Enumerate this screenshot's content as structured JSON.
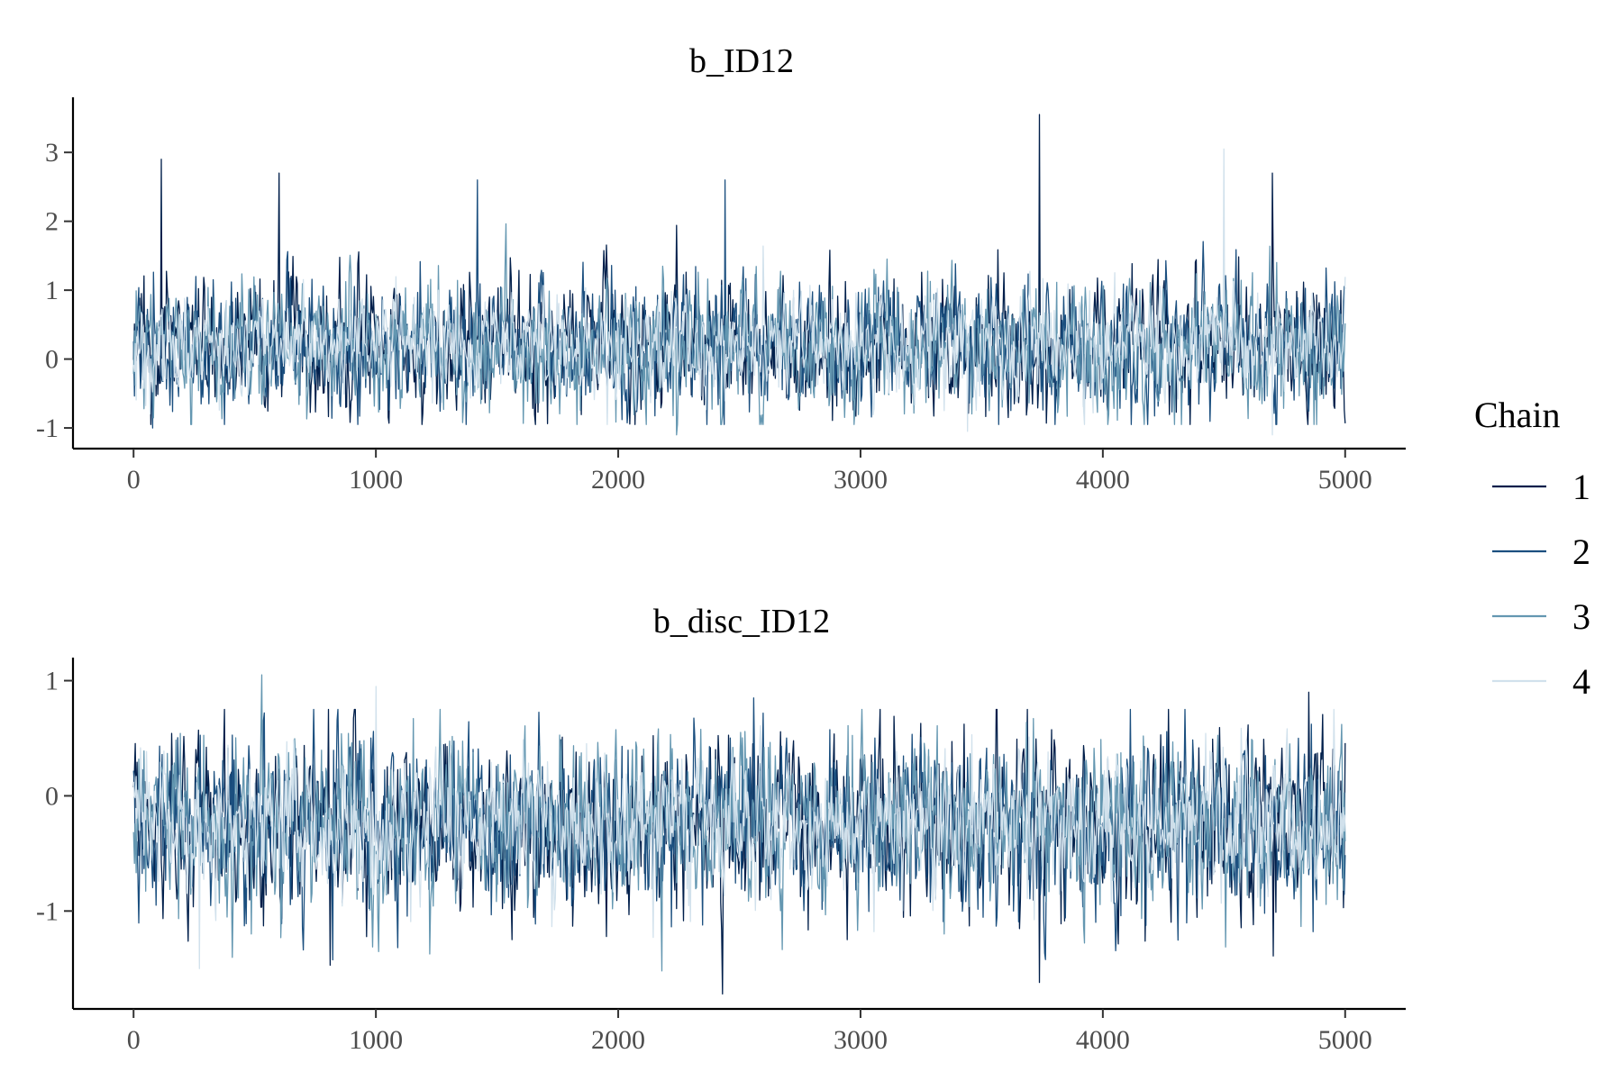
{
  "chart_data": [
    {
      "type": "line",
      "title": "b_ID12",
      "xlabel": "",
      "ylabel": "",
      "xlim": [
        -250,
        5250
      ],
      "ylim": [
        -1.3,
        3.8
      ],
      "x_ticks": [
        0,
        1000,
        2000,
        3000,
        4000,
        5000
      ],
      "x_tick_labels": [
        "0",
        "1000",
        "2000",
        "3000",
        "4000",
        "5000"
      ],
      "y_ticks": [
        -1,
        0,
        1,
        2,
        3
      ],
      "y_tick_labels": [
        "-1",
        "0",
        "1",
        "2",
        "3"
      ],
      "draws": 5000,
      "series_stats": {
        "center": 0.2,
        "spread": 0.45,
        "min": -1.1,
        "max": 3.6
      },
      "peaks": [
        {
          "chain": "1",
          "x": 115,
          "y": 2.9
        },
        {
          "chain": "1",
          "x": 600,
          "y": 2.7
        },
        {
          "chain": "2",
          "x": 1420,
          "y": 2.6
        },
        {
          "chain": "2",
          "x": 2440,
          "y": 2.6
        },
        {
          "chain": "1",
          "x": 3740,
          "y": 3.55
        },
        {
          "chain": "4",
          "x": 4500,
          "y": 3.05
        },
        {
          "chain": "1",
          "x": 4700,
          "y": 2.7
        }
      ],
      "troughs": [
        {
          "chain": "2",
          "x": 80,
          "y": -1.0
        },
        {
          "chain": "3",
          "x": 2240,
          "y": -1.1
        },
        {
          "chain": "4",
          "x": 3440,
          "y": -1.05
        },
        {
          "chain": "4",
          "x": 4700,
          "y": -1.1
        }
      ]
    },
    {
      "type": "line",
      "title": "b_disc_ID12",
      "xlabel": "",
      "ylabel": "",
      "xlim": [
        -250,
        5250
      ],
      "ylim": [
        -1.85,
        1.2
      ],
      "x_ticks": [
        0,
        1000,
        2000,
        3000,
        4000,
        5000
      ],
      "x_tick_labels": [
        "0",
        "1000",
        "2000",
        "3000",
        "4000",
        "5000"
      ],
      "y_ticks": [
        -1,
        0,
        1
      ],
      "y_tick_labels": [
        "-1",
        "0",
        "1"
      ],
      "draws": 5000,
      "series_stats": {
        "center": -0.25,
        "spread": 0.35,
        "min": -1.72,
        "max": 1.05
      },
      "peaks": [
        {
          "chain": "3",
          "x": 530,
          "y": 1.05
        },
        {
          "chain": "4",
          "x": 1000,
          "y": 0.95
        },
        {
          "chain": "2",
          "x": 2560,
          "y": 0.85
        },
        {
          "chain": "1",
          "x": 4850,
          "y": 0.9
        }
      ],
      "troughs": [
        {
          "chain": "1",
          "x": 2430,
          "y": -1.72
        },
        {
          "chain": "1",
          "x": 3740,
          "y": -1.62
        },
        {
          "chain": "3",
          "x": 2180,
          "y": -1.52
        },
        {
          "chain": "4",
          "x": 270,
          "y": -1.5
        }
      ]
    }
  ],
  "legend": {
    "title": "Chain",
    "position": "right",
    "items": [
      {
        "label": "1",
        "color": "#011f4b"
      },
      {
        "label": "2",
        "color": "#1b4f7f"
      },
      {
        "label": "3",
        "color": "#6497b1"
      },
      {
        "label": "4",
        "color": "#d1e1ec"
      }
    ]
  },
  "grid": false
}
